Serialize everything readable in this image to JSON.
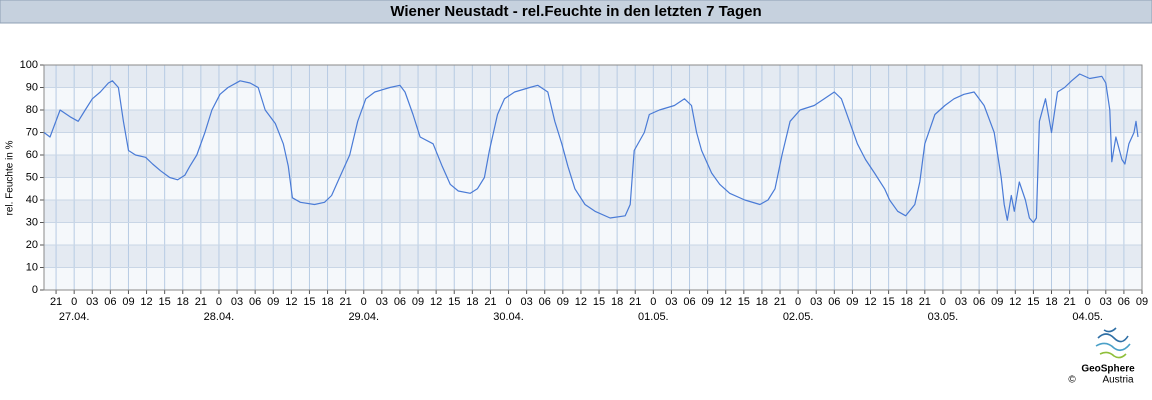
{
  "chart_data": {
    "type": "line",
    "title": "Wiener Neustadt - rel.Feuchte in den letzten 7 Tagen",
    "y_label": "rel. Feuchte in %",
    "logo": {
      "name": "GeoSphere",
      "sub": "Austria",
      "copyright": "©"
    },
    "xlim": [
      "26.04. 19:00",
      "04.05. 09:00"
    ],
    "ylim": [
      0,
      100
    ],
    "yticks": [
      0,
      10,
      20,
      30,
      40,
      50,
      60,
      70,
      80,
      90,
      100
    ],
    "grid": true,
    "xticks": [
      {
        "value": "26.04. 21:00",
        "label": "21"
      },
      {
        "value": "27.04. 00:00",
        "label": "0"
      },
      {
        "value": "27.04. 03:00",
        "label": "03"
      },
      {
        "value": "27.04. 06:00",
        "label": "06"
      },
      {
        "value": "27.04. 09:00",
        "label": "09"
      },
      {
        "value": "27.04. 12:00",
        "label": "12"
      },
      {
        "value": "27.04. 15:00",
        "label": "15"
      },
      {
        "value": "27.04. 18:00",
        "label": "18"
      },
      {
        "value": "27.04. 21:00",
        "label": "21"
      },
      {
        "value": "28.04. 00:00",
        "label": "0"
      },
      {
        "value": "28.04. 03:00",
        "label": "03"
      },
      {
        "value": "28.04. 06:00",
        "label": "06"
      },
      {
        "value": "28.04. 09:00",
        "label": "09"
      },
      {
        "value": "28.04. 12:00",
        "label": "12"
      },
      {
        "value": "28.04. 15:00",
        "label": "15"
      },
      {
        "value": "28.04. 18:00",
        "label": "18"
      },
      {
        "value": "28.04. 21:00",
        "label": "21"
      },
      {
        "value": "29.04. 00:00",
        "label": "0"
      },
      {
        "value": "29.04. 03:00",
        "label": "03"
      },
      {
        "value": "29.04. 06:00",
        "label": "06"
      },
      {
        "value": "29.04. 09:00",
        "label": "09"
      },
      {
        "value": "29.04. 12:00",
        "label": "12"
      },
      {
        "value": "29.04. 15:00",
        "label": "15"
      },
      {
        "value": "29.04. 18:00",
        "label": "18"
      },
      {
        "value": "29.04. 21:00",
        "label": "21"
      },
      {
        "value": "30.04. 00:00",
        "label": "0"
      },
      {
        "value": "30.04. 03:00",
        "label": "03"
      },
      {
        "value": "30.04. 06:00",
        "label": "06"
      },
      {
        "value": "30.04. 09:00",
        "label": "09"
      },
      {
        "value": "30.04. 12:00",
        "label": "12"
      },
      {
        "value": "30.04. 15:00",
        "label": "15"
      },
      {
        "value": "30.04. 18:00",
        "label": "18"
      },
      {
        "value": "30.04. 21:00",
        "label": "21"
      },
      {
        "value": "01.05. 00:00",
        "label": "0"
      },
      {
        "value": "01.05. 03:00",
        "label": "03"
      },
      {
        "value": "01.05. 06:00",
        "label": "06"
      },
      {
        "value": "01.05. 09:00",
        "label": "09"
      },
      {
        "value": "01.05. 12:00",
        "label": "12"
      },
      {
        "value": "01.05. 15:00",
        "label": "15"
      },
      {
        "value": "01.05. 18:00",
        "label": "18"
      },
      {
        "value": "01.05. 21:00",
        "label": "21"
      },
      {
        "value": "02.05. 00:00",
        "label": "0"
      },
      {
        "value": "02.05. 03:00",
        "label": "03"
      },
      {
        "value": "02.05. 06:00",
        "label": "06"
      },
      {
        "value": "02.05. 09:00",
        "label": "09"
      },
      {
        "value": "02.05. 12:00",
        "label": "12"
      },
      {
        "value": "02.05. 15:00",
        "label": "15"
      },
      {
        "value": "02.05. 18:00",
        "label": "18"
      },
      {
        "value": "02.05. 21:00",
        "label": "21"
      },
      {
        "value": "03.05. 00:00",
        "label": "0"
      },
      {
        "value": "03.05. 03:00",
        "label": "03"
      },
      {
        "value": "03.05. 06:00",
        "label": "06"
      },
      {
        "value": "03.05. 09:00",
        "label": "09"
      },
      {
        "value": "03.05. 12:00",
        "label": "12"
      },
      {
        "value": "03.05. 15:00",
        "label": "15"
      },
      {
        "value": "03.05. 18:00",
        "label": "18"
      },
      {
        "value": "03.05. 21:00",
        "label": "21"
      },
      {
        "value": "04.05. 00:00",
        "label": "0"
      },
      {
        "value": "04.05. 03:00",
        "label": "03"
      },
      {
        "value": "04.05. 06:00",
        "label": "06"
      },
      {
        "value": "04.05. 09:00",
        "label": "09"
      }
    ],
    "date_labels": [
      {
        "value": "27.04. 00:00",
        "label": "27.04."
      },
      {
        "value": "28.04. 00:00",
        "label": "28.04."
      },
      {
        "value": "29.04. 00:00",
        "label": "29.04."
      },
      {
        "value": "30.04. 00:00",
        "label": "30.04."
      },
      {
        "value": "01.05. 00:00",
        "label": "01.05."
      },
      {
        "value": "02.05. 00:00",
        "label": "02.05."
      },
      {
        "value": "03.05. 00:00",
        "label": "03.05."
      },
      {
        "value": "04.05. 00:00",
        "label": "04.05."
      }
    ],
    "x": [
      "26.04. 19:00",
      "26.04. 20:00",
      "26.04. 21:40",
      "26.04. 23:20",
      "27.04. 00:40",
      "27.04. 01:50",
      "27.04. 03:00",
      "27.04. 04:20",
      "27.04. 05:40",
      "27.04. 06:20",
      "27.04. 07:20",
      "27.04. 08:10",
      "27.04. 09:00",
      "27.04. 10:10",
      "27.04. 11:50",
      "27.04. 13:00",
      "27.04. 14:20",
      "27.04. 15:50",
      "27.04. 17:10",
      "27.04. 18:20",
      "27.04. 19:10",
      "27.04. 20:20",
      "27.04. 21:40",
      "27.04. 22:50",
      "28.04. 00:10",
      "28.04. 01:30",
      "28.04. 03:30",
      "28.04. 05:10",
      "28.04. 06:30",
      "28.04. 07:40",
      "28.04. 09:20",
      "28.04. 10:40",
      "28.04. 11:30",
      "28.04. 12:10",
      "28.04. 13:30",
      "28.04. 15:50",
      "28.04. 17:30",
      "28.04. 18:40",
      "28.04. 20:00",
      "28.04. 21:40",
      "28.04. 23:00",
      "29.04. 00:20",
      "29.04. 01:50",
      "29.04. 04:20",
      "29.04. 06:00",
      "29.04. 06:50",
      "29.04. 08:10",
      "29.04. 09:20",
      "29.04. 11:30",
      "29.04. 13:00",
      "29.04. 14:20",
      "29.04. 15:40",
      "29.04. 17:40",
      "29.04. 18:50",
      "29.04. 20:00",
      "29.04. 20:50",
      "29.04. 22:10",
      "29.04. 23:20",
      "30.04. 01:00",
      "30.04. 03:30",
      "30.04. 04:50",
      "30.04. 06:30",
      "30.04. 07:40",
      "30.04. 08:50",
      "30.04. 09:50",
      "30.04. 11:00",
      "30.04. 12:40",
      "30.04. 14:20",
      "30.04. 16:50",
      "30.04. 19:20",
      "30.04. 20:10",
      "30.04. 20:50",
      "30.04. 22:30",
      "30.04. 23:20",
      "01.05. 01:00",
      "01.05. 03:30",
      "01.05. 05:10",
      "01.05. 06:20",
      "01.05. 07:10",
      "01.05. 08:00",
      "01.05. 09:40",
      "01.05. 11:00",
      "01.05. 12:40",
      "01.05. 15:10",
      "01.05. 17:40",
      "01.05. 19:00",
      "01.05. 20:10",
      "01.05. 21:20",
      "01.05. 22:40",
      "02.05. 00:20",
      "02.05. 02:40",
      "02.05. 04:20",
      "02.05. 06:00",
      "02.05. 07:10",
      "02.05. 08:30",
      "02.05. 09:50",
      "02.05. 11:10",
      "02.05. 12:40",
      "02.05. 14:20",
      "02.05. 15:10",
      "02.05. 16:30",
      "02.05. 17:50",
      "02.05. 19:20",
      "02.05. 20:10",
      "02.05. 21:00",
      "02.05. 22:40",
      "03.05. 00:20",
      "03.05. 01:50",
      "03.05. 03:30",
      "03.05. 05:10",
      "03.05. 06:50",
      "03.05. 08:30",
      "03.05. 09:40",
      "03.05. 10:10",
      "03.05. 10:40",
      "03.05. 11:20",
      "03.05. 11:50",
      "03.05. 12:40",
      "03.05. 13:40",
      "03.05. 14:20",
      "03.05. 15:00",
      "03.05. 15:30",
      "03.05. 16:00",
      "03.05. 17:00",
      "03.05. 18:00",
      "03.05. 19:00",
      "03.05. 20:10",
      "03.05. 21:20",
      "03.05. 22:40",
      "04.05. 00:20",
      "04.05. 02:20",
      "04.05. 03:00",
      "04.05. 03:40",
      "04.05. 04:00",
      "04.05. 04:40",
      "04.05. 05:40",
      "04.05. 06:10",
      "04.05. 06:50",
      "04.05. 07:40",
      "04.05. 08:00",
      "04.05. 08:20"
    ],
    "series": [
      {
        "name": "rel. Feuchte",
        "color": "#4a7bd6",
        "values": [
          70,
          68,
          80,
          77,
          75,
          80,
          85,
          88,
          92,
          93,
          90,
          75,
          62,
          60,
          59,
          56,
          53,
          50,
          49,
          51,
          55,
          60,
          70,
          80,
          87,
          90,
          93,
          92,
          90,
          80,
          74,
          65,
          55,
          41,
          39,
          38,
          39,
          42,
          50,
          60,
          75,
          85,
          88,
          90,
          91,
          88,
          78,
          68,
          65,
          55,
          47,
          44,
          43,
          45,
          50,
          62,
          78,
          85,
          88,
          90,
          91,
          88,
          75,
          65,
          55,
          45,
          38,
          35,
          32,
          33,
          38,
          62,
          70,
          78,
          80,
          82,
          85,
          82,
          70,
          62,
          52,
          47,
          43,
          40,
          38,
          40,
          45,
          60,
          75,
          80,
          82,
          85,
          88,
          85,
          75,
          65,
          58,
          52,
          45,
          40,
          35,
          33,
          38,
          48,
          65,
          78,
          82,
          85,
          87,
          88,
          82,
          70,
          50,
          38,
          31,
          42,
          35,
          48,
          40,
          32,
          30,
          32,
          75,
          85,
          70,
          88,
          90,
          93,
          96,
          94,
          95,
          92,
          80,
          57,
          68,
          58,
          56,
          65,
          70,
          75,
          68
        ]
      }
    ]
  }
}
